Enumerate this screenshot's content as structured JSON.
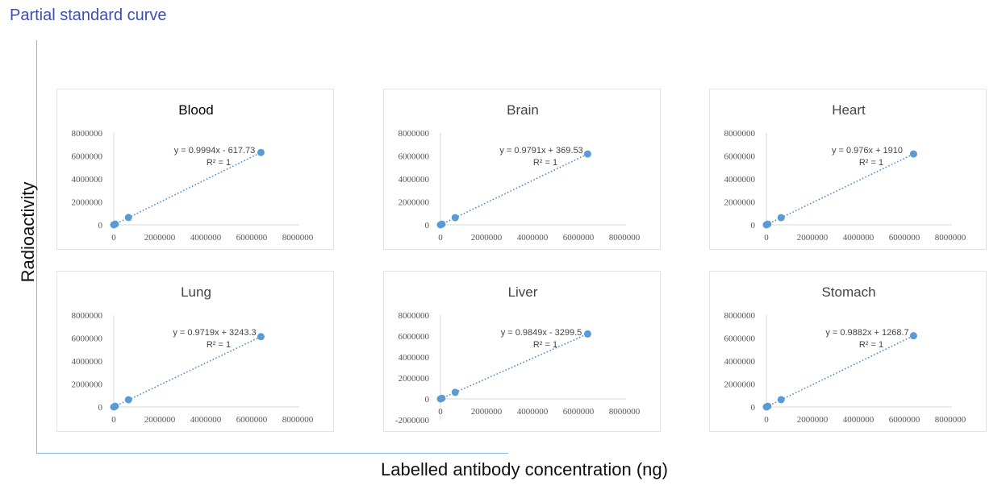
{
  "page_title": "Partial standard curve",
  "ylabel": "Radioactivity",
  "xlabel": "Labelled antibody concentration (ng)",
  "colors": {
    "marker": "#5b9bd5",
    "trendline": "#4a86c8",
    "axis": "#d9d9d9",
    "big_axis": "#8eb4e3",
    "title": "#3b4fb5"
  },
  "chart_data": [
    {
      "type": "scatter",
      "title": "Blood",
      "equation": "y = 0.9994x - 617.73",
      "r2": "R² = 1",
      "xlim": [
        0,
        8000000
      ],
      "ylim": [
        0,
        8000000
      ],
      "xticks": [
        "0",
        "2000000",
        "4000000",
        "6000000",
        "8000000"
      ],
      "yticks": [
        "0",
        "2000000",
        "4000000",
        "6000000",
        "8000000"
      ],
      "x": [
        0,
        64000,
        640000,
        6400000
      ],
      "y": [
        0,
        63300,
        639000,
        6300000
      ],
      "trendline": "linear dotted"
    },
    {
      "type": "scatter",
      "title": "Brain",
      "equation": "y = 0.9791x + 369.53",
      "r2": "R² = 1",
      "xlim": [
        0,
        8000000
      ],
      "ylim": [
        0,
        8000000
      ],
      "xticks": [
        "0",
        "2000000",
        "4000000",
        "6000000",
        "8000000"
      ],
      "yticks": [
        "0",
        "2000000",
        "4000000",
        "6000000",
        "8000000"
      ],
      "x": [
        0,
        64000,
        640000,
        6400000
      ],
      "y": [
        0,
        63000,
        627000,
        6170000
      ],
      "trendline": "linear dotted"
    },
    {
      "type": "scatter",
      "title": "Heart",
      "equation": "y = 0.976x + 1910",
      "r2": "R² = 1",
      "xlim": [
        0,
        8000000
      ],
      "ylim": [
        0,
        8000000
      ],
      "xticks": [
        "0",
        "2000000",
        "4000000",
        "6000000",
        "8000000"
      ],
      "yticks": [
        "0",
        "2000000",
        "4000000",
        "6000000",
        "8000000"
      ],
      "x": [
        0,
        64000,
        640000,
        6400000
      ],
      "y": [
        0,
        64000,
        627000,
        6170000
      ],
      "trendline": "linear dotted"
    },
    {
      "type": "scatter",
      "title": "Lung",
      "equation": "y = 0.9719x + 3243.3",
      "r2": "R² = 1",
      "xlim": [
        0,
        8000000
      ],
      "ylim": [
        0,
        8000000
      ],
      "xticks": [
        "0",
        "2000000",
        "4000000",
        "6000000",
        "8000000"
      ],
      "yticks": [
        "0",
        "2000000",
        "4000000",
        "6000000",
        "8000000"
      ],
      "x": [
        0,
        64000,
        640000,
        6400000
      ],
      "y": [
        0,
        65000,
        625000,
        6120000
      ],
      "trendline": "linear dotted"
    },
    {
      "type": "scatter",
      "title": "Liver",
      "equation": "y = 0.9849x - 3299.5",
      "r2": "R² = 1",
      "xlim": [
        0,
        8000000
      ],
      "ylim": [
        -2000000,
        8000000
      ],
      "xticks": [
        "0",
        "2000000",
        "4000000",
        "6000000",
        "8000000"
      ],
      "yticks": [
        "-2000000",
        "0",
        "2000000",
        "4000000",
        "6000000",
        "8000000"
      ],
      "x": [
        0,
        64000,
        640000,
        6400000
      ],
      "y": [
        0,
        60000,
        627000,
        6200000
      ],
      "trendline": "linear dotted"
    },
    {
      "type": "scatter",
      "title": "Stomach",
      "equation": "y = 0.9882x + 1268.7",
      "r2": "R² = 1",
      "xlim": [
        0,
        8000000
      ],
      "ylim": [
        0,
        8000000
      ],
      "xticks": [
        "0",
        "2000000",
        "4000000",
        "6000000",
        "8000000"
      ],
      "yticks": [
        "0",
        "2000000",
        "4000000",
        "6000000",
        "8000000"
      ],
      "x": [
        0,
        64000,
        640000,
        6400000
      ],
      "y": [
        0,
        64000,
        633000,
        6200000
      ],
      "trendline": "linear dotted"
    }
  ]
}
